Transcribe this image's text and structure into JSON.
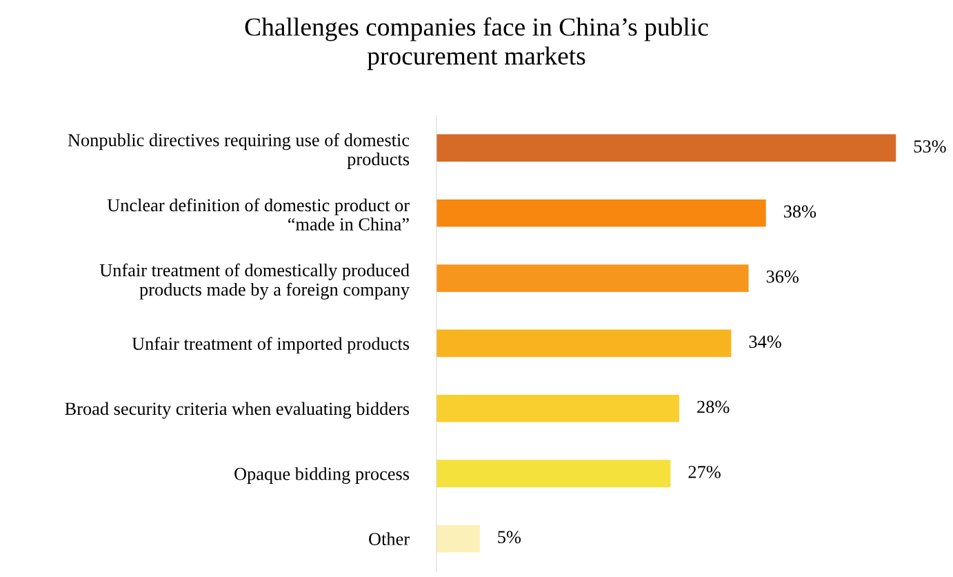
{
  "chart_data": {
    "type": "bar",
    "orientation": "horizontal",
    "title": "Challenges companies face in China’s public\nprocurement markets",
    "categories": [
      "Nonpublic directives requiring use of domestic\nproducts",
      "Unclear definition of domestic product or\n“made in China”",
      "Unfair treatment of domestically produced\nproducts made by a foreign company",
      "Unfair treatment of imported products",
      "Broad security criteria when evaluating bidders",
      "Opaque bidding process",
      "Other"
    ],
    "values": [
      53,
      38,
      36,
      34,
      28,
      27,
      5
    ],
    "colors": [
      "#d56b27",
      "#f7870f",
      "#f7961d",
      "#f8b41f",
      "#f8cf2e",
      "#f5e13b",
      "#fbf0b8"
    ],
    "value_labels": [
      "53%",
      "38%",
      "36%",
      "34%",
      "28%",
      "27%",
      "5%"
    ],
    "grid": false,
    "legend": false
  }
}
